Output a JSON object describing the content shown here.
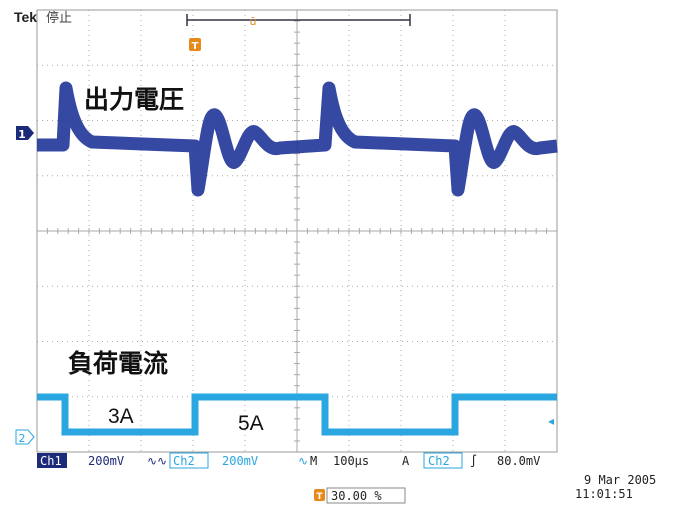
{
  "header": {
    "brand": "Tek",
    "status": "停止"
  },
  "labels": {
    "voltage": "出力電圧",
    "current": "負荷電流",
    "low": "3A",
    "high": "5A"
  },
  "markers": {
    "ch1": "1",
    "ch2": "2",
    "trigger": "T"
  },
  "statusbar": {
    "ch1": "Ch1",
    "ch1_scale": "200mV",
    "ch2": "Ch2",
    "ch2_scale": "200mV",
    "timebase_label": "M",
    "timebase": "100µs",
    "trigger_mode": "A",
    "trigger_source": "Ch2",
    "trigger_level": "80.0mV"
  },
  "footer": {
    "date": "9 Mar 2005",
    "time": "11:01:51",
    "position": "30.00 %"
  }
}
